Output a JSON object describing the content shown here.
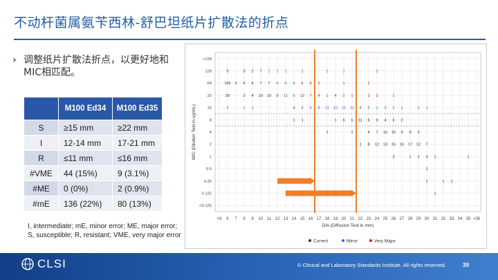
{
  "slide": {
    "title": "不动杆菌属氨苄西林-舒巴坦纸片扩散法的折点",
    "bullet": "调整纸片扩散法折点，以更好地和MIC相匹配。",
    "footnote": "I, intermediate; mE, minor error; ME, major error; S, susceptible; R, resistant; VME, very major error",
    "footer": {
      "logo": "CLSI",
      "copyright": "© Clinical and Laboratory Standards Institute. All rights reserved.",
      "page": "39"
    }
  },
  "table": {
    "headers": [
      "",
      "M100 Ed34",
      "M100 Ed35"
    ],
    "rows": [
      {
        "label": "S",
        "ed34": "≥15 mm",
        "ed35": "≥22 mm"
      },
      {
        "label": "I",
        "ed34": "12-14 mm",
        "ed35": "17-21 mm"
      },
      {
        "label": "R",
        "ed34": "≤11 mm",
        "ed35": "≤16 mm"
      },
      {
        "label": "#VME",
        "ed34": "44 (15%)",
        "ed35": "9 (3.1%)"
      },
      {
        "label": "#ME",
        "ed34": "0 (0%)",
        "ed35": "2 (0.9%)"
      },
      {
        "label": "#mE",
        "ed34": "136 (22%)",
        "ed35": "80 (13%)"
      }
    ]
  },
  "chart_data": {
    "type": "scatter",
    "title": "",
    "xlabel": "DIA (Diffusion Test in mm)",
    "ylabel": "MIC (Dilution Test in ug/mL)",
    "x_ticks": [
      "<6",
      "6",
      "7",
      "8",
      "9",
      "10",
      "11",
      "12",
      "13",
      "14",
      "15",
      "16",
      "17",
      "18",
      "19",
      "20",
      "21",
      "22",
      "23",
      "24",
      "25",
      "26",
      "27",
      "28",
      "29",
      "30",
      "31",
      "32",
      "33",
      "34",
      "35",
      ">36"
    ],
    "y_ticks": [
      ">128",
      "128",
      "64",
      "32",
      "16",
      "8",
      "4",
      "2",
      "1",
      "0.5",
      "0.25",
      "0.125",
      "<0.125"
    ],
    "legend": [
      "Correct",
      "Minor",
      "Very Major"
    ],
    "legend_colors": {
      "Correct": "#333333",
      "Minor": "#3a5fcd",
      "Very Major": "#d62020"
    },
    "breakpoint_lines_mm": [
      16.5,
      21.5
    ],
    "dashed_mic_lines": [
      16,
      8
    ],
    "arrows": [
      {
        "from_mm": 12,
        "to_mm": 16.5,
        "mic": "0.25"
      },
      {
        "from_mm": 13,
        "to_mm": 21.5,
        "mic": "0.125"
      }
    ],
    "rows": [
      {
        "mic": "128",
        "cells": [
          {
            "mm": "6",
            "n": "5",
            "cls": "Correct"
          },
          {
            "mm": "8",
            "n": "3",
            "cls": "Correct"
          },
          {
            "mm": "9",
            "n": "2",
            "cls": "Correct"
          },
          {
            "mm": "10",
            "n": "7",
            "cls": "Correct"
          },
          {
            "mm": "11",
            "n": "1",
            "cls": "Minor"
          },
          {
            "mm": "12",
            "n": "1",
            "cls": "Minor"
          },
          {
            "mm": "13",
            "n": "1",
            "cls": "Minor"
          },
          {
            "mm": "15",
            "n": "1",
            "cls": "Very Major"
          },
          {
            "mm": "18",
            "n": "1",
            "cls": "Very Major"
          },
          {
            "mm": "20",
            "n": "1",
            "cls": "Very Major"
          },
          {
            "mm": "24",
            "n": "1",
            "cls": "Very Major"
          }
        ]
      },
      {
        "mic": "64",
        "cells": [
          {
            "mm": "6",
            "n": "165",
            "cls": "Correct"
          },
          {
            "mm": "7",
            "n": "2",
            "cls": "Correct"
          },
          {
            "mm": "8",
            "n": "5",
            "cls": "Correct"
          },
          {
            "mm": "9",
            "n": "6",
            "cls": "Correct"
          },
          {
            "mm": "10",
            "n": "7",
            "cls": "Correct"
          },
          {
            "mm": "11",
            "n": "7",
            "cls": "Correct"
          },
          {
            "mm": "12",
            "n": "6",
            "cls": "Minor"
          },
          {
            "mm": "13",
            "n": "5",
            "cls": "Minor"
          },
          {
            "mm": "14",
            "n": "5",
            "cls": "Minor"
          },
          {
            "mm": "15",
            "n": "6",
            "cls": "Very Major"
          },
          {
            "mm": "16",
            "n": "9",
            "cls": "Very Major"
          },
          {
            "mm": "17",
            "n": "2",
            "cls": "Very Major"
          },
          {
            "mm": "20",
            "n": "1",
            "cls": "Very Major"
          },
          {
            "mm": "23",
            "n": "1",
            "cls": "Very Major"
          }
        ]
      },
      {
        "mic": "32",
        "cells": [
          {
            "mm": "6",
            "n": "20",
            "cls": "Correct"
          },
          {
            "mm": "8",
            "n": "2",
            "cls": "Correct"
          },
          {
            "mm": "9",
            "n": "4",
            "cls": "Correct"
          },
          {
            "mm": "10",
            "n": "10",
            "cls": "Correct"
          },
          {
            "mm": "11",
            "n": "10",
            "cls": "Correct"
          },
          {
            "mm": "12",
            "n": "8",
            "cls": "Minor"
          },
          {
            "mm": "13",
            "n": "11",
            "cls": "Minor"
          },
          {
            "mm": "14",
            "n": "5",
            "cls": "Minor"
          },
          {
            "mm": "15",
            "n": "12",
            "cls": "Very Major"
          },
          {
            "mm": "16",
            "n": "7",
            "cls": "Very Major"
          },
          {
            "mm": "17",
            "n": "4",
            "cls": "Very Major"
          },
          {
            "mm": "18",
            "n": "1",
            "cls": "Very Major"
          },
          {
            "mm": "19",
            "n": "4",
            "cls": "Very Major"
          },
          {
            "mm": "20",
            "n": "2",
            "cls": "Very Major"
          },
          {
            "mm": "21",
            "n": "1",
            "cls": "Very Major"
          },
          {
            "mm": "23",
            "n": "2",
            "cls": "Very Major"
          },
          {
            "mm": "24",
            "n": "2",
            "cls": "Very Major"
          },
          {
            "mm": "26",
            "n": "1",
            "cls": "Very Major"
          }
        ]
      },
      {
        "mic": "16",
        "cells": [
          {
            "mm": "6",
            "n": "2",
            "cls": "Minor"
          },
          {
            "mm": "8",
            "n": "1",
            "cls": "Minor"
          },
          {
            "mm": "9",
            "n": "1",
            "cls": "Minor"
          },
          {
            "mm": "14",
            "n": "4",
            "cls": "Correct"
          },
          {
            "mm": "15",
            "n": "5",
            "cls": "Minor"
          },
          {
            "mm": "16",
            "n": "5",
            "cls": "Minor"
          },
          {
            "mm": "17",
            "n": "8",
            "cls": "Minor"
          },
          {
            "mm": "18",
            "n": "11",
            "cls": "Minor"
          },
          {
            "mm": "19",
            "n": "10",
            "cls": "Minor"
          },
          {
            "mm": "20",
            "n": "11",
            "cls": "Minor"
          },
          {
            "mm": "21",
            "n": "11",
            "cls": "Minor"
          },
          {
            "mm": "22",
            "n": "4",
            "cls": "Minor"
          },
          {
            "mm": "23",
            "n": "5",
            "cls": "Minor"
          },
          {
            "mm": "24",
            "n": "1",
            "cls": "Minor"
          },
          {
            "mm": "25",
            "n": "3",
            "cls": "Minor"
          },
          {
            "mm": "26",
            "n": "2",
            "cls": "Minor"
          },
          {
            "mm": "27",
            "n": "1",
            "cls": "Minor"
          },
          {
            "mm": "29",
            "n": "2",
            "cls": "Minor"
          },
          {
            "mm": "30",
            "n": "1",
            "cls": "Minor"
          }
        ]
      },
      {
        "mic": "8",
        "cells": [
          {
            "mm": "14",
            "n": "1",
            "cls": "Correct"
          },
          {
            "mm": "15",
            "n": "1",
            "cls": "Correct"
          },
          {
            "mm": "19",
            "n": "1",
            "cls": "Correct"
          },
          {
            "mm": "20",
            "n": "6",
            "cls": "Correct"
          },
          {
            "mm": "21",
            "n": "5",
            "cls": "Correct"
          },
          {
            "mm": "22",
            "n": "11",
            "cls": "Correct"
          },
          {
            "mm": "23",
            "n": "6",
            "cls": "Correct"
          },
          {
            "mm": "24",
            "n": "9",
            "cls": "Correct"
          },
          {
            "mm": "25",
            "n": "4",
            "cls": "Correct"
          },
          {
            "mm": "26",
            "n": "6",
            "cls": "Correct"
          },
          {
            "mm": "27",
            "n": "2",
            "cls": "Correct"
          }
        ]
      },
      {
        "mic": "4",
        "cells": [
          {
            "mm": "18",
            "n": "1",
            "cls": "Correct"
          },
          {
            "mm": "21",
            "n": "1",
            "cls": "Correct"
          },
          {
            "mm": "23",
            "n": "4",
            "cls": "Correct"
          },
          {
            "mm": "24",
            "n": "7",
            "cls": "Correct"
          },
          {
            "mm": "25",
            "n": "10",
            "cls": "Correct"
          },
          {
            "mm": "26",
            "n": "15",
            "cls": "Correct"
          },
          {
            "mm": "27",
            "n": "9",
            "cls": "Correct"
          },
          {
            "mm": "28",
            "n": "9",
            "cls": "Correct"
          },
          {
            "mm": "29",
            "n": "3",
            "cls": "Correct"
          }
        ]
      },
      {
        "mic": "2",
        "cells": [
          {
            "mm": "22",
            "n": "1",
            "cls": "Correct"
          },
          {
            "mm": "23",
            "n": "8",
            "cls": "Correct"
          },
          {
            "mm": "24",
            "n": "12",
            "cls": "Correct"
          },
          {
            "mm": "25",
            "n": "13",
            "cls": "Correct"
          },
          {
            "mm": "26",
            "n": "15",
            "cls": "Correct"
          },
          {
            "mm": "27",
            "n": "15",
            "cls": "Correct"
          },
          {
            "mm": "28",
            "n": "17",
            "cls": "Correct"
          },
          {
            "mm": "29",
            "n": "12",
            "cls": "Correct"
          },
          {
            "mm": "30",
            "n": "7",
            "cls": "Correct"
          }
        ]
      },
      {
        "mic": "1",
        "cells": [
          {
            "mm": "26",
            "n": "3",
            "cls": "Correct"
          },
          {
            "mm": "28",
            "n": "1",
            "cls": "Correct"
          },
          {
            "mm": "29",
            "n": "2",
            "cls": "Correct"
          },
          {
            "mm": "30",
            "n": "3",
            "cls": "Correct"
          },
          {
            "mm": "31",
            "n": "1",
            "cls": "Correct"
          },
          {
            "mm": "35",
            "n": "1",
            "cls": "Correct"
          }
        ]
      },
      {
        "mic": "0.5",
        "cells": [
          {
            "mm": "30",
            "n": "1",
            "cls": "Correct"
          }
        ]
      },
      {
        "mic": "0.25",
        "cells": [
          {
            "mm": "30",
            "n": "1",
            "cls": "Correct"
          },
          {
            "mm": "32",
            "n": "1",
            "cls": "Correct"
          },
          {
            "mm": "33",
            "n": "1",
            "cls": "Correct"
          }
        ]
      },
      {
        "mic": "0.125",
        "cells": [
          {
            "mm": "31",
            "n": "1",
            "cls": "Correct"
          }
        ]
      }
    ]
  }
}
